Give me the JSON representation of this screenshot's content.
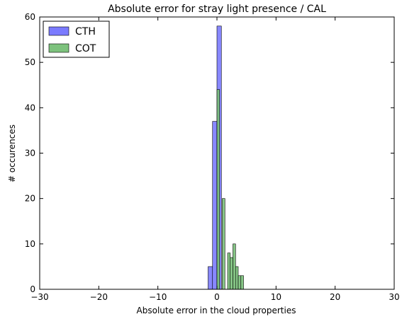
{
  "chart_data": {
    "type": "bar",
    "title": "Absolute error for stray light presence / CAL",
    "xlabel": "Absolute error in the cloud properties",
    "ylabel": "# occurences",
    "xlim": [
      -30,
      30
    ],
    "ylim": [
      0,
      60
    ],
    "xticks": [
      -30,
      -20,
      -10,
      0,
      10,
      20,
      30
    ],
    "yticks": [
      0,
      10,
      20,
      30,
      40,
      50,
      60
    ],
    "xtick_labels": [
      "−30",
      "−20",
      "−10",
      "0",
      "10",
      "20",
      "30"
    ],
    "ytick_labels": [
      "0",
      "10",
      "20",
      "30",
      "40",
      "50",
      "60"
    ],
    "grid": false,
    "legend_position": "top-left",
    "series": [
      {
        "name": "CTH",
        "color": "#7b7bff",
        "bins": [
          {
            "x0": -1.5,
            "x1": -0.75,
            "value": 5
          },
          {
            "x0": -0.75,
            "x1": 0.0,
            "value": 37
          },
          {
            "x0": 0.0,
            "x1": 0.75,
            "value": 58
          }
        ]
      },
      {
        "name": "COT",
        "color": "#7dc27d",
        "bins": [
          {
            "x0": 0.0,
            "x1": 0.45,
            "value": 44
          },
          {
            "x0": 0.45,
            "x1": 0.9,
            "value": 0
          },
          {
            "x0": 0.9,
            "x1": 1.35,
            "value": 20
          },
          {
            "x0": 1.35,
            "x1": 1.8,
            "value": 0
          },
          {
            "x0": 1.8,
            "x1": 2.25,
            "value": 8
          },
          {
            "x0": 2.25,
            "x1": 2.7,
            "value": 7
          },
          {
            "x0": 2.7,
            "x1": 3.15,
            "value": 10
          },
          {
            "x0": 3.15,
            "x1": 3.6,
            "value": 5
          },
          {
            "x0": 3.6,
            "x1": 4.05,
            "value": 3
          },
          {
            "x0": 4.05,
            "x1": 4.5,
            "value": 3
          }
        ]
      }
    ]
  }
}
